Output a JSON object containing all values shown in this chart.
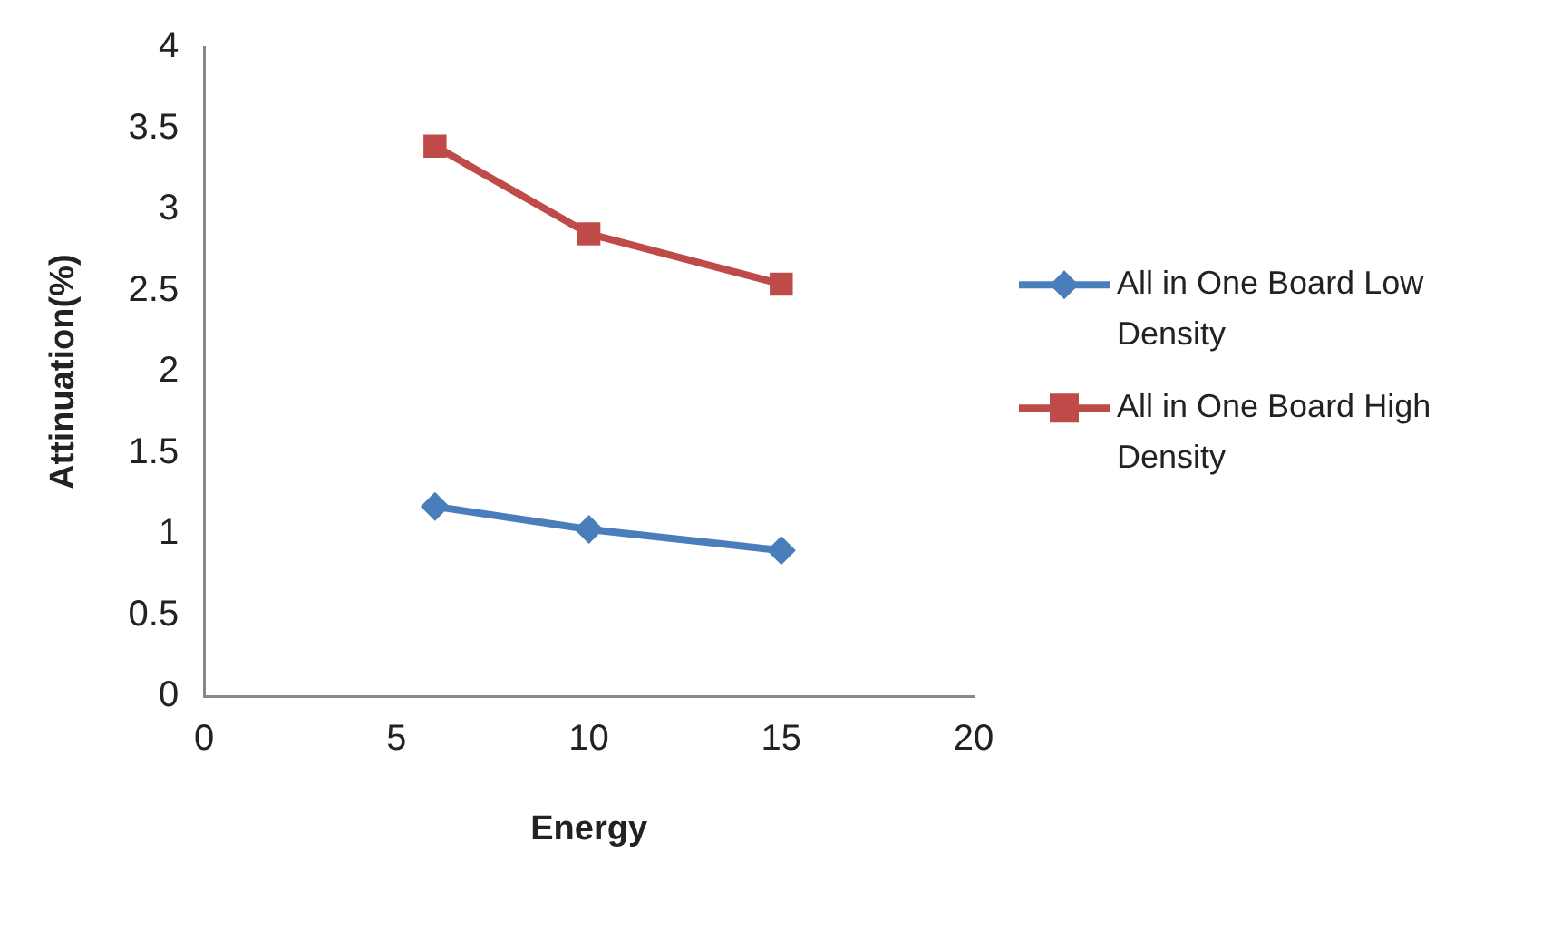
{
  "chart_data": {
    "type": "line",
    "xlabel": "Energy",
    "ylabel": "Attinuation(%)",
    "x": [
      6,
      10,
      15
    ],
    "series": [
      {
        "name": "All in One Board Low Density",
        "color": "#4a7ebb",
        "values": [
          1.17,
          1.03,
          0.9
        ],
        "marker": "diamond"
      },
      {
        "name": "All in One Board High Density",
        "color": "#be4b48",
        "values": [
          3.39,
          2.85,
          2.54
        ],
        "marker": "square"
      }
    ],
    "xlim": [
      0,
      20
    ],
    "xticks": [
      0,
      5,
      10,
      15,
      20
    ],
    "ylim": [
      0,
      4
    ],
    "yticks": [
      0,
      0.5,
      1,
      1.5,
      2,
      2.5,
      3,
      3.5,
      4
    ],
    "grid": false,
    "legend": "right",
    "line_style": "solid"
  }
}
